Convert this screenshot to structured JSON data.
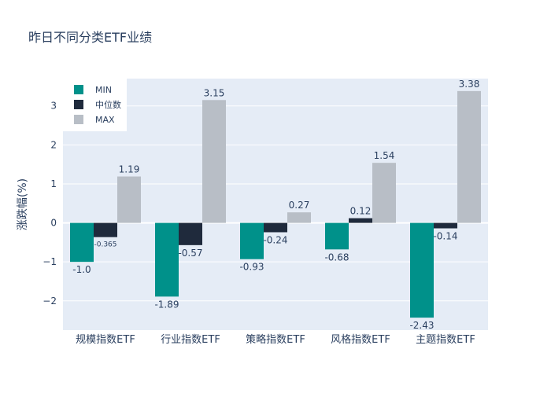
{
  "chart_data": {
    "type": "bar",
    "title": "昨日不同分类ETF业绩",
    "xlabel": "",
    "ylabel": "涨跌幅(%)",
    "ylim": [
      -2.75,
      3.7
    ],
    "yticks": [
      -2,
      -1,
      0,
      1,
      2,
      3
    ],
    "ytick_labels": [
      "−2",
      "−1",
      "0",
      "1",
      "2",
      "3"
    ],
    "categories": [
      "规模指数ETF",
      "行业指数ETF",
      "策略指数ETF",
      "风格指数ETF",
      "主题指数ETF"
    ],
    "series": [
      {
        "name": "MIN",
        "color": "#00918a",
        "values": [
          -1.0,
          -1.89,
          -0.93,
          -0.68,
          -2.43
        ],
        "labels": [
          "-1.0",
          "-1.89",
          "-0.93",
          "-0.68",
          "-2.43"
        ]
      },
      {
        "name": "中位数",
        "color": "#1f2a3c",
        "values": [
          -0.365,
          -0.57,
          -0.24,
          0.12,
          -0.14
        ],
        "labels": [
          "-0.365",
          "-0.57",
          "-0.24",
          "0.12",
          "-0.14"
        ]
      },
      {
        "name": "MAX",
        "color": "#b8bec6",
        "values": [
          1.19,
          3.15,
          0.27,
          1.54,
          3.38
        ],
        "labels": [
          "1.19",
          "3.15",
          "0.27",
          "1.54",
          "3.38"
        ]
      }
    ],
    "legend_position": "top-left",
    "grid": true
  }
}
